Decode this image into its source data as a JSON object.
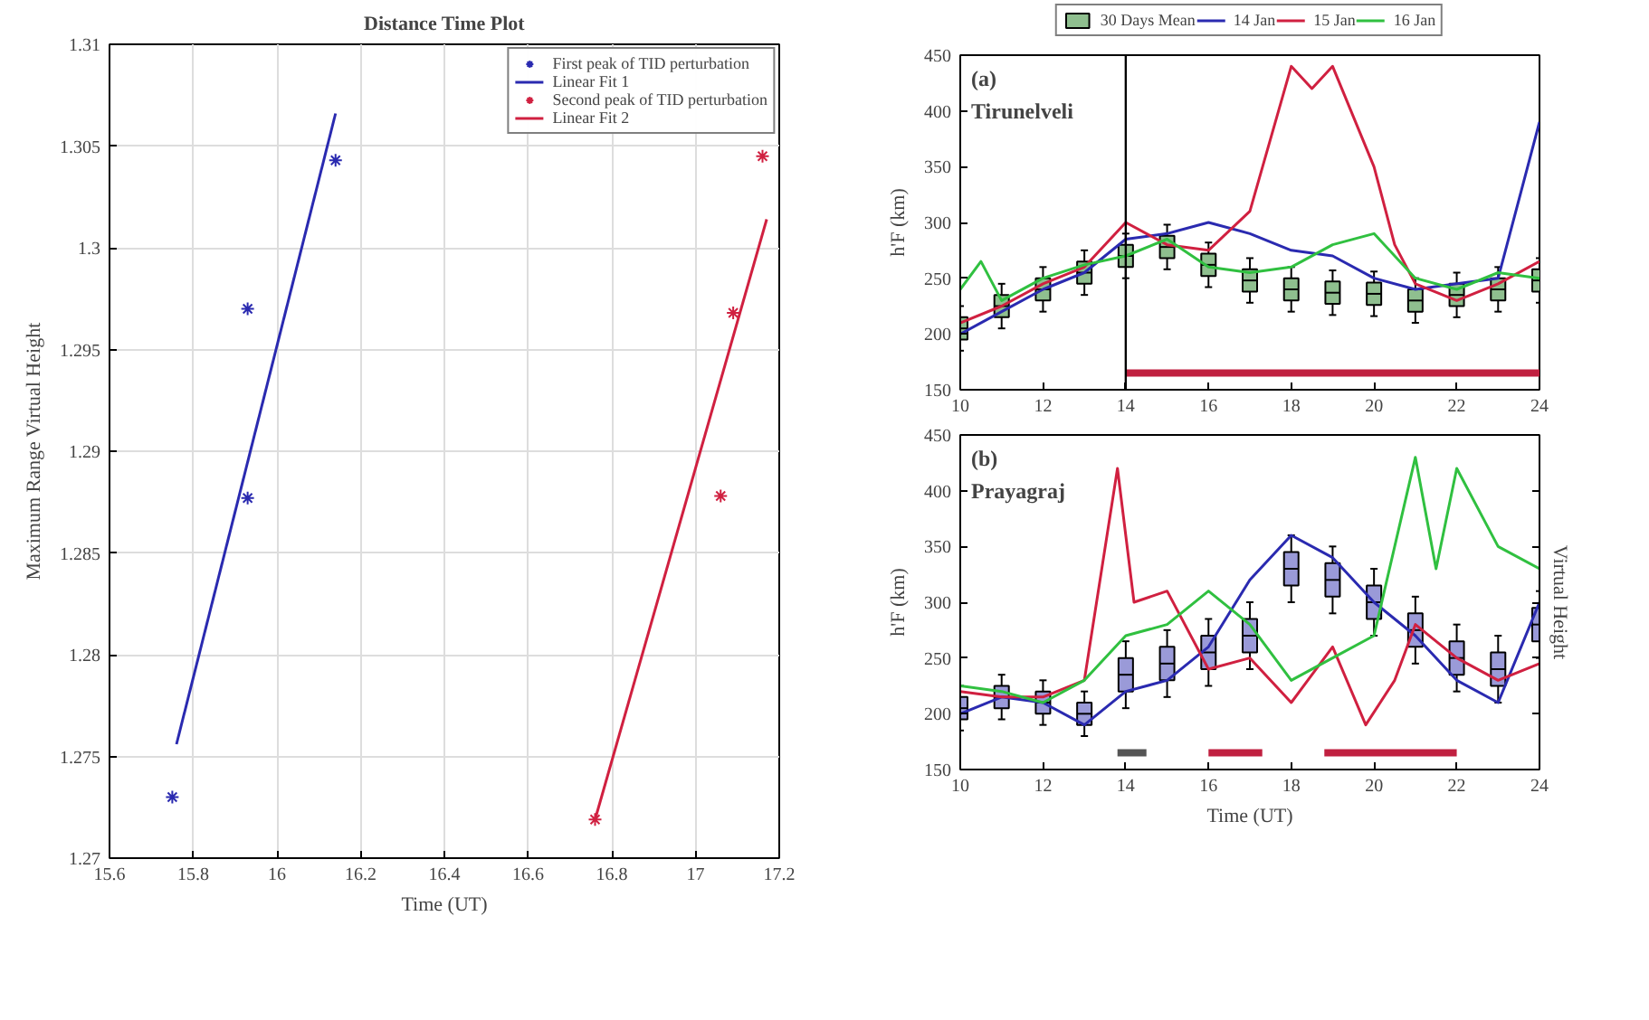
{
  "chart_data": [
    {
      "type": "scatter",
      "title": "Distance Time Plot",
      "xlabel": "Time (UT)",
      "ylabel": "Maximum Range Virtual Height",
      "xlim": [
        15.6,
        17.2
      ],
      "xticks": [
        15.6,
        15.8,
        16,
        16.2,
        16.4,
        16.6,
        16.8,
        17,
        17.2
      ],
      "ylim": [
        1.27,
        1.31
      ],
      "yticks": [
        1.27,
        1.275,
        1.28,
        1.285,
        1.29,
        1.295,
        1.3,
        1.305,
        1.31
      ],
      "grid": true,
      "legend": "top right",
      "series": [
        {
          "name": "First peak of TID perturbation",
          "marker": "cross",
          "color": "#2a2ab0",
          "x": [
            15.75,
            15.93,
            15.93,
            16.14
          ],
          "values": [
            1.273,
            1.297,
            1.2877,
            1.3043
          ]
        },
        {
          "name": "Linear Fit 1",
          "type": "line",
          "color": "#2a2ab0",
          "x": [
            15.76,
            16.14
          ],
          "values": [
            1.2756,
            1.3066
          ]
        },
        {
          "name": "Second peak of TID perturbation",
          "marker": "cross",
          "color": "#d02040",
          "x": [
            16.76,
            17.06,
            17.09,
            17.16
          ],
          "values": [
            1.2719,
            1.2878,
            1.2968,
            1.3045
          ]
        },
        {
          "name": "Linear Fit 2",
          "type": "line",
          "color": "#d02040",
          "x": [
            16.76,
            17.17
          ],
          "values": [
            1.2719,
            1.3014
          ]
        }
      ]
    },
    {
      "type": "line",
      "ylabel": "h'F (km)",
      "annotations": [
        "(a)",
        "Tirunelveli"
      ],
      "xlim": [
        10,
        24
      ],
      "xticks": [
        10,
        12,
        14,
        16,
        18,
        20,
        22,
        24
      ],
      "ylim": [
        150,
        450
      ],
      "yticks": [
        150,
        200,
        250,
        300,
        350,
        400,
        450
      ],
      "legend": "top",
      "ref_lines": [
        {
          "axis": "x",
          "value": 14,
          "color": "#000000"
        }
      ],
      "series": [
        {
          "name": "30 Days Mean",
          "type": "box",
          "color": "#8fbf8f",
          "x": [
            10,
            11,
            12,
            13,
            14,
            15,
            16,
            17,
            18,
            19,
            20,
            21,
            22,
            23,
            24
          ],
          "boxes": [
            {
              "low": 185,
              "q1": 195,
              "median": 205,
              "q3": 215,
              "high": 225
            },
            {
              "low": 205,
              "q1": 215,
              "median": 225,
              "q3": 235,
              "high": 245
            },
            {
              "low": 220,
              "q1": 230,
              "median": 240,
              "q3": 250,
              "high": 260
            },
            {
              "low": 235,
              "q1": 245,
              "median": 255,
              "q3": 265,
              "high": 275
            },
            {
              "low": 250,
              "q1": 260,
              "median": 270,
              "q3": 280,
              "high": 290
            },
            {
              "low": 258,
              "q1": 268,
              "median": 278,
              "q3": 288,
              "high": 298
            },
            {
              "low": 242,
              "q1": 252,
              "median": 262,
              "q3": 272,
              "high": 282
            },
            {
              "low": 228,
              "q1": 238,
              "median": 248,
              "q3": 258,
              "high": 268
            },
            {
              "low": 220,
              "q1": 230,
              "median": 240,
              "q3": 250,
              "high": 260
            },
            {
              "low": 217,
              "q1": 227,
              "median": 237,
              "q3": 247,
              "high": 257
            },
            {
              "low": 216,
              "q1": 226,
              "median": 236,
              "q3": 246,
              "high": 256
            },
            {
              "low": 210,
              "q1": 220,
              "median": 230,
              "q3": 240,
              "high": 250
            },
            {
              "low": 215,
              "q1": 225,
              "median": 235,
              "q3": 245,
              "high": 255
            },
            {
              "low": 220,
              "q1": 230,
              "median": 240,
              "q3": 250,
              "high": 260
            },
            {
              "low": 228,
              "q1": 238,
              "median": 248,
              "q3": 258,
              "high": 268
            }
          ]
        },
        {
          "name": "14 Jan",
          "color": "#2a2ab0",
          "x": [
            10,
            11,
            12,
            13,
            14,
            15,
            16,
            17,
            18,
            19,
            20,
            21,
            22,
            23,
            24
          ],
          "values": [
            200,
            220,
            240,
            255,
            285,
            290,
            300,
            290,
            275,
            270,
            250,
            240,
            245,
            250,
            390
          ]
        },
        {
          "name": "15 Jan",
          "color": "#d02040",
          "x": [
            10,
            11,
            12,
            13,
            14,
            15,
            16,
            17,
            18,
            18.5,
            19,
            20,
            20.5,
            21,
            22,
            23,
            24
          ],
          "values": [
            210,
            225,
            245,
            260,
            300,
            280,
            275,
            310,
            440,
            420,
            440,
            350,
            280,
            245,
            230,
            245,
            265
          ]
        },
        {
          "name": "16 Jan",
          "color": "#30c040",
          "x": [
            10,
            10.5,
            11,
            12,
            13,
            14,
            15,
            16,
            17,
            18,
            19,
            20,
            21,
            22,
            23,
            24
          ],
          "values": [
            240,
            265,
            230,
            250,
            262,
            270,
            285,
            260,
            255,
            260,
            280,
            290,
            250,
            240,
            255,
            250
          ]
        },
        {
          "color": "#c02040",
          "x": [
            14,
            24
          ],
          "values": [
            165,
            165
          ]
        }
      ]
    },
    {
      "type": "line",
      "xlabel": "Time (UT)",
      "ylabel": "h'F (km)",
      "y2label": "Virtual Height",
      "annotations": [
        "(b)",
        "Prayagraj"
      ],
      "xlim": [
        10,
        24
      ],
      "xticks": [
        10,
        12,
        14,
        16,
        18,
        20,
        22,
        24
      ],
      "ylim": [
        150,
        450
      ],
      "yticks": [
        150,
        200,
        250,
        300,
        350,
        400,
        450
      ],
      "series": [
        {
          "type": "box",
          "color": "#9a9ad8",
          "x": [
            10,
            11,
            12,
            13,
            14,
            15,
            16,
            17,
            18,
            19,
            20,
            21,
            22,
            23,
            24
          ],
          "boxes": [
            {
              "low": 185,
              "q1": 195,
              "median": 205,
              "q3": 215,
              "high": 225
            },
            {
              "low": 195,
              "q1": 205,
              "median": 215,
              "q3": 225,
              "high": 235
            },
            {
              "low": 190,
              "q1": 200,
              "median": 210,
              "q3": 220,
              "high": 230
            },
            {
              "low": 180,
              "q1": 190,
              "median": 200,
              "q3": 210,
              "high": 220
            },
            {
              "low": 205,
              "q1": 220,
              "median": 235,
              "q3": 250,
              "high": 265
            },
            {
              "low": 215,
              "q1": 230,
              "median": 245,
              "q3": 260,
              "high": 275
            },
            {
              "low": 225,
              "q1": 240,
              "median": 255,
              "q3": 270,
              "high": 285
            },
            {
              "low": 240,
              "q1": 255,
              "median": 270,
              "q3": 285,
              "high": 300
            },
            {
              "low": 300,
              "q1": 315,
              "median": 330,
              "q3": 345,
              "high": 360
            },
            {
              "low": 290,
              "q1": 305,
              "median": 320,
              "q3": 335,
              "high": 350
            },
            {
              "low": 270,
              "q1": 285,
              "median": 300,
              "q3": 315,
              "high": 330
            },
            {
              "low": 245,
              "q1": 260,
              "median": 275,
              "q3": 290,
              "high": 305
            },
            {
              "low": 220,
              "q1": 235,
              "median": 250,
              "q3": 265,
              "high": 280
            },
            {
              "low": 210,
              "q1": 225,
              "median": 240,
              "q3": 255,
              "high": 270
            },
            {
              "low": 250,
              "q1": 265,
              "median": 280,
              "q3": 295,
              "high": 310
            }
          ]
        },
        {
          "color": "#2a2ab0",
          "x": [
            10,
            11,
            12,
            13,
            14,
            15,
            16,
            17,
            18,
            19,
            20,
            21,
            22,
            23,
            24
          ],
          "values": [
            200,
            215,
            210,
            190,
            220,
            230,
            260,
            320,
            360,
            340,
            300,
            270,
            230,
            210,
            300
          ]
        },
        {
          "color": "#d02040",
          "x": [
            10,
            11,
            12,
            13,
            13.8,
            14.2,
            15,
            16,
            17,
            18,
            19,
            19.8,
            20.5,
            21,
            22,
            23,
            24
          ],
          "values": [
            220,
            215,
            215,
            230,
            420,
            300,
            310,
            240,
            250,
            210,
            260,
            190,
            230,
            280,
            250,
            230,
            245
          ]
        },
        {
          "color": "#30c040",
          "x": [
            10,
            11,
            12,
            13,
            14,
            15,
            16,
            17,
            18,
            19,
            20,
            21,
            21.5,
            22,
            23,
            24
          ],
          "values": [
            225,
            220,
            210,
            230,
            270,
            280,
            310,
            280,
            230,
            250,
            270,
            430,
            330,
            420,
            350,
            330
          ]
        },
        {
          "color": "#555555",
          "x": [
            13.8,
            14.5
          ],
          "values": [
            165,
            165
          ]
        },
        {
          "color": "#c02040",
          "x": [
            16,
            17.3
          ],
          "values": [
            165,
            165
          ]
        },
        {
          "color": "#c02040",
          "x": [
            18.8,
            22
          ],
          "values": [
            165,
            165
          ]
        }
      ]
    }
  ]
}
